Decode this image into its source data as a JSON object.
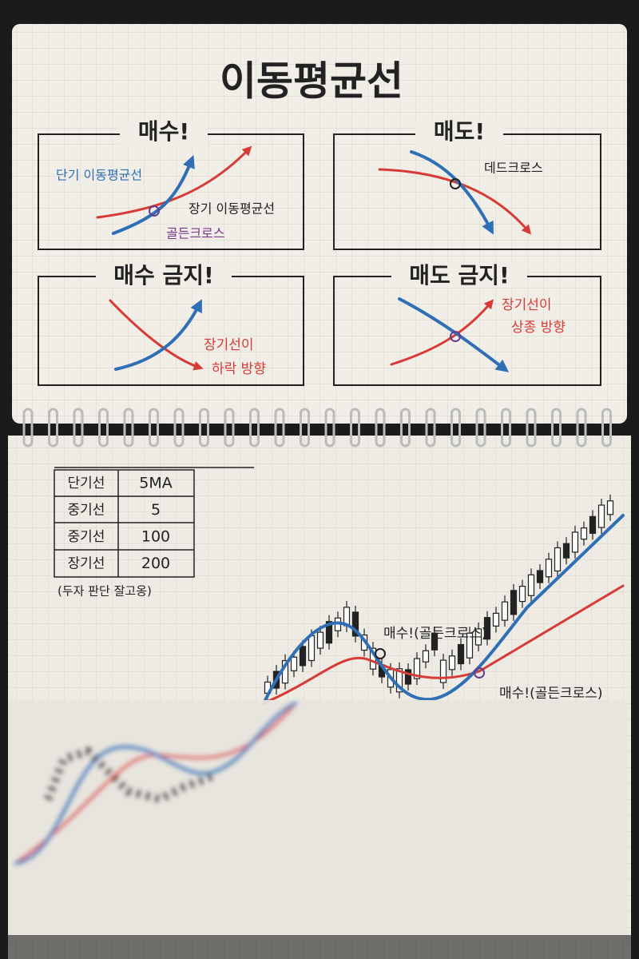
{
  "title": "이동평균선",
  "panels": [
    {
      "title": "매수!",
      "labels": [
        "단기 이동평균선",
        "장기 이동평균선",
        "골든크로스"
      ]
    },
    {
      "title": "매도!",
      "labels": [
        "데드크로스"
      ]
    },
    {
      "title": "매수 금지!",
      "labels": [
        "장기선이",
        "하락 방향"
      ]
    },
    {
      "title": "매도 금지!",
      "labels": [
        "장기선이",
        "상종 방향"
      ]
    }
  ],
  "table": {
    "rows": [
      [
        "단기선",
        "5MA"
      ],
      [
        "중기선",
        "5"
      ],
      [
        "중기선",
        "100"
      ],
      [
        "장기선",
        "200"
      ]
    ],
    "note": "(두자 판단 잘고옹)"
  },
  "chart": {
    "annotations": [
      "매수!(골든크로스)",
      "매수!(골든크로스)"
    ]
  }
}
